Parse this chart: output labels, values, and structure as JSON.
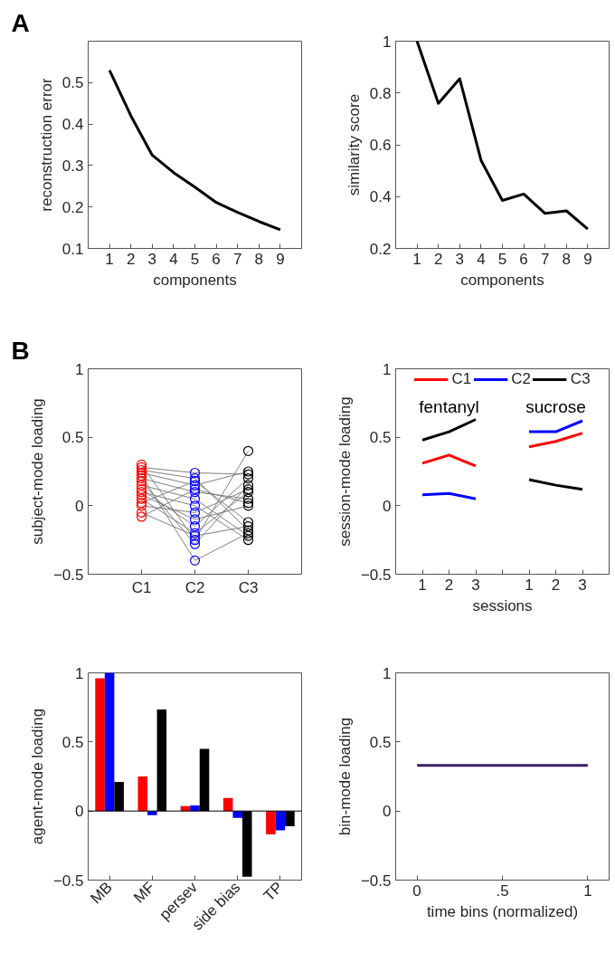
{
  "chart_data": [
    {
      "type": "line",
      "annotations": [
        "A"
      ],
      "xlabel": "components",
      "ylabel": "reconstruction error",
      "x": [
        1,
        2,
        3,
        4,
        5,
        6,
        7,
        8,
        9
      ],
      "xlim": [
        0,
        10
      ],
      "xticks": [
        1,
        2,
        3,
        4,
        5,
        6,
        7,
        8,
        9
      ],
      "ylim": [
        0.1,
        0.6
      ],
      "yticks": [
        0.1,
        0.2,
        0.3,
        0.4,
        0.5
      ],
      "series": [
        {
          "color": "#000000",
          "values": [
            0.53,
            0.42,
            0.325,
            0.283,
            0.248,
            0.211,
            0.187,
            0.165,
            0.145
          ]
        }
      ]
    },
    {
      "type": "line",
      "xlabel": "components",
      "ylabel": "similarity score",
      "x": [
        1,
        2,
        3,
        4,
        5,
        6,
        7,
        8,
        9
      ],
      "xlim": [
        0,
        10
      ],
      "xticks": [
        1,
        2,
        3,
        4,
        5,
        6,
        7,
        8,
        9
      ],
      "ylim": [
        0.2,
        1
      ],
      "yticks": [
        0.2,
        0.4,
        0.6,
        0.8,
        1
      ],
      "series": [
        {
          "color": "#000000",
          "values": [
            1.0,
            0.76,
            0.855,
            0.54,
            0.385,
            0.41,
            0.335,
            0.345,
            0.275
          ]
        }
      ]
    },
    {
      "type": "line",
      "annotations": [
        "B"
      ],
      "ylabel": "subject-mode loading",
      "categories": [
        "C1",
        "C2",
        "C3"
      ],
      "ylim": [
        -0.5,
        1
      ],
      "yticks": [
        -0.5,
        0,
        0.5,
        1
      ],
      "series": [
        {
          "color": "#808080",
          "values": [
            0.3,
            -0.25,
            0.4
          ]
        },
        {
          "color": "#808080",
          "values": [
            0.28,
            0.24,
            0.23
          ]
        },
        {
          "color": "#808080",
          "values": [
            0.26,
            0.2,
            -0.18
          ]
        },
        {
          "color": "#808080",
          "values": [
            0.24,
            0.15,
            0.25
          ]
        },
        {
          "color": "#808080",
          "values": [
            0.22,
            -0.4,
            -0.2
          ]
        },
        {
          "color": "#808080",
          "values": [
            0.2,
            0.1,
            0.05
          ]
        },
        {
          "color": "#808080",
          "values": [
            0.18,
            -0.28,
            0.15
          ]
        },
        {
          "color": "#808080",
          "values": [
            0.15,
            0.05,
            -0.22
          ]
        },
        {
          "color": "#808080",
          "values": [
            0.12,
            -0.15,
            0.2
          ]
        },
        {
          "color": "#808080",
          "values": [
            0.1,
            0.0,
            -0.25
          ]
        },
        {
          "color": "#808080",
          "values": [
            0.08,
            -0.1,
            0.0
          ]
        },
        {
          "color": "#808080",
          "values": [
            0.05,
            -0.2,
            0.1
          ]
        },
        {
          "color": "#808080",
          "values": [
            0.02,
            0.18,
            -0.12
          ]
        },
        {
          "color": "#808080",
          "values": [
            0.0,
            -0.05,
            0.12
          ]
        },
        {
          "color": "#808080",
          "values": [
            -0.05,
            -0.22,
            -0.15
          ]
        },
        {
          "color": "#808080",
          "values": [
            -0.08,
            0.12,
            0.02
          ]
        },
        {
          "type": "scatter",
          "marker": "circle",
          "color": "#ff0000",
          "x": [
            "C1",
            "C1",
            "C1",
            "C1",
            "C1",
            "C1",
            "C1",
            "C1",
            "C1",
            "C1",
            "C1",
            "C1",
            "C1",
            "C1",
            "C1",
            "C1"
          ],
          "values": [
            0.3,
            0.28,
            0.26,
            0.24,
            0.22,
            0.2,
            0.18,
            0.15,
            0.12,
            0.1,
            0.08,
            0.05,
            0.02,
            0.0,
            -0.05,
            -0.08
          ]
        },
        {
          "type": "scatter",
          "marker": "circle",
          "color": "#0000ff",
          "x": [
            "C2",
            "C2",
            "C2",
            "C2",
            "C2",
            "C2",
            "C2",
            "C2",
            "C2",
            "C2",
            "C2",
            "C2",
            "C2",
            "C2",
            "C2",
            "C2"
          ],
          "values": [
            -0.25,
            0.24,
            0.2,
            0.15,
            -0.4,
            0.1,
            -0.28,
            0.05,
            -0.15,
            0.0,
            -0.1,
            -0.2,
            0.18,
            -0.05,
            -0.22,
            0.12
          ]
        },
        {
          "type": "scatter",
          "marker": "circle",
          "color": "#000000",
          "x": [
            "C3",
            "C3",
            "C3",
            "C3",
            "C3",
            "C3",
            "C3",
            "C3",
            "C3",
            "C3",
            "C3",
            "C3",
            "C3",
            "C3",
            "C3",
            "C3"
          ],
          "values": [
            0.4,
            0.23,
            -0.18,
            0.25,
            -0.2,
            0.05,
            0.15,
            -0.22,
            0.2,
            -0.25,
            0.0,
            0.1,
            -0.12,
            0.12,
            -0.15,
            0.02
          ]
        }
      ]
    },
    {
      "type": "line",
      "xlabel": "sessions",
      "ylabel": "session-mode loading",
      "legend": "top",
      "categories": [
        "1",
        "2",
        "3",
        null,
        "1",
        "2",
        "3"
      ],
      "ylim": [
        -0.5,
        1
      ],
      "yticks": [
        -0.5,
        0,
        0.5,
        1
      ],
      "annotations": [
        "fentanyl",
        "sucrose"
      ],
      "series": [
        {
          "name": "C1",
          "color": "#ff0000",
          "values": [
            0.31,
            0.37,
            0.29,
            null,
            0.43,
            0.47,
            0.53
          ]
        },
        {
          "name": "C2",
          "color": "#0000ff",
          "values": [
            0.08,
            0.09,
            0.05,
            null,
            0.54,
            0.54,
            0.62
          ]
        },
        {
          "name": "C3",
          "color": "#000000",
          "values": [
            0.48,
            0.54,
            0.63,
            null,
            0.19,
            0.15,
            0.12
          ]
        }
      ]
    },
    {
      "type": "bar",
      "ylabel": "agent-mode loading",
      "categories": [
        "MB",
        "MF",
        "persev",
        "side bias",
        "TP"
      ],
      "ylim": [
        -0.5,
        1
      ],
      "yticks": [
        -0.5,
        0,
        0.5,
        1
      ],
      "ref_lines": [
        {
          "axis": "y",
          "value": 0,
          "color": "#000000"
        }
      ],
      "series": [
        {
          "color": "#ff0000",
          "values": [
            0.96,
            0.25,
            0.035,
            0.095,
            -0.17
          ]
        },
        {
          "color": "#0000ff",
          "values": [
            1.0,
            -0.03,
            0.04,
            -0.05,
            -0.14
          ]
        },
        {
          "color": "#000000",
          "values": [
            0.21,
            0.735,
            0.45,
            -0.475,
            -0.11
          ]
        }
      ]
    },
    {
      "type": "line",
      "xlabel": "time bins (normalized)",
      "ylabel": "bin-mode loading",
      "x": [
        0,
        0.5,
        1
      ],
      "xlim": [
        -0.125,
        1.125
      ],
      "xticks": [
        0,
        {
          "value": 0.5,
          "label": ".5"
        },
        1
      ],
      "ylim": [
        -0.5,
        1
      ],
      "yticks": [
        -0.5,
        0,
        0.5,
        1
      ],
      "series": [
        {
          "color": "#3b1f66",
          "values": [
            0.33,
            0.33,
            0.33
          ]
        }
      ]
    }
  ]
}
